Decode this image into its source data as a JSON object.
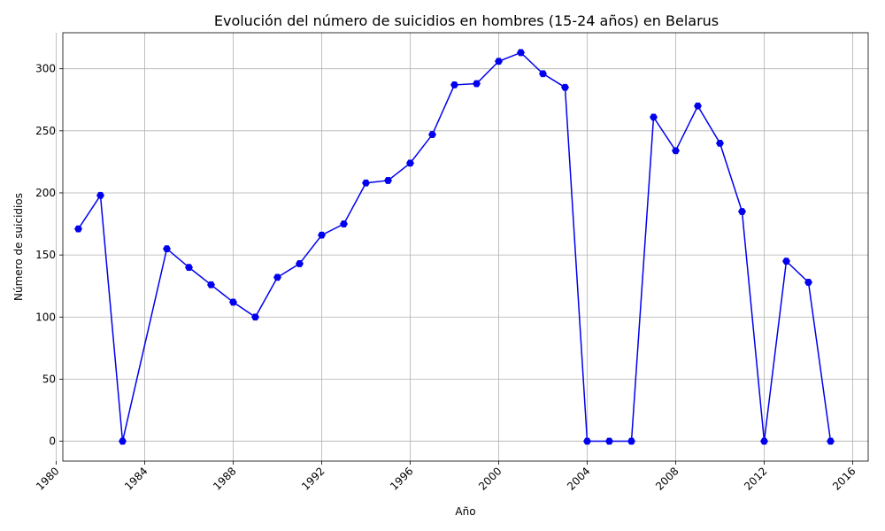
{
  "chart_data": {
    "type": "line",
    "title": "Evolución del número de suicidios en hombres (15-24 años) en Belarus",
    "xlabel": "Año",
    "ylabel": "Número de suicidios",
    "xlim": [
      1980.3,
      2016.7
    ],
    "ylim": [
      -16,
      329
    ],
    "xticks": [
      1980,
      1984,
      1988,
      1992,
      1996,
      2000,
      2004,
      2008,
      2012,
      2016
    ],
    "yticks": [
      0,
      50,
      100,
      150,
      200,
      250,
      300
    ],
    "grid": true,
    "line_color": "#0000ee",
    "marker": "hexagon",
    "series": [
      {
        "x": [
          1981,
          1982,
          1983,
          1985,
          1986,
          1987,
          1988,
          1989,
          1990,
          1991,
          1992,
          1993,
          1994,
          1995,
          1996,
          1997,
          1998,
          1999,
          2000,
          2001,
          2002,
          2003,
          2004,
          2005,
          2006,
          2007,
          2008,
          2009,
          2010,
          2011,
          2012,
          2013,
          2014,
          2015
        ],
        "values": [
          171,
          198,
          0,
          155,
          140,
          126,
          112,
          100,
          132,
          143,
          166,
          175,
          208,
          210,
          224,
          247,
          287,
          288,
          306,
          313,
          296,
          285,
          0,
          0,
          0,
          261,
          234,
          270,
          240,
          185,
          0,
          145,
          128,
          0
        ]
      }
    ]
  }
}
